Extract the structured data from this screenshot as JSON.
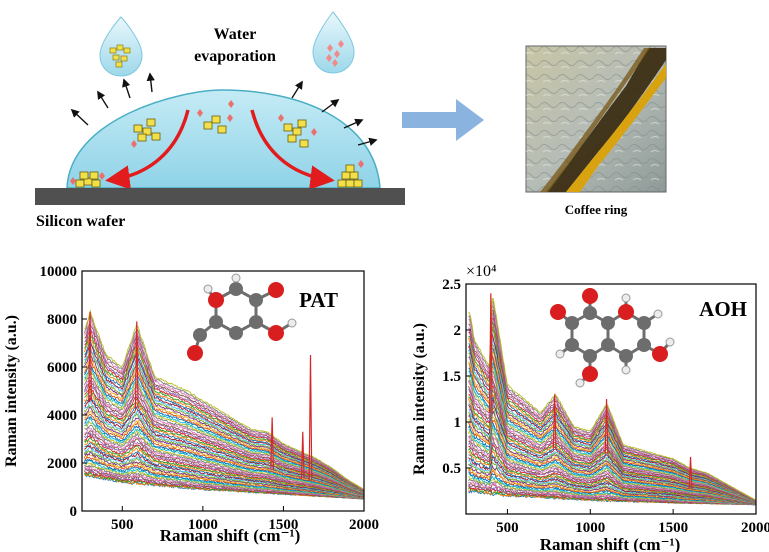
{
  "schematic": {
    "evaporation_label_line1": "Water",
    "evaporation_label_line2": "evaporation",
    "substrate_label": "Silicon wafer",
    "coffee_ring_label": "Coffee ring",
    "colors": {
      "droplet": "#a6dcea",
      "droplet_edge": "#4aaec4",
      "wafer": "#505050",
      "arrow": "#8ab4df",
      "curve_arrow": "#e21c1c",
      "particle": "#f2e04a"
    }
  },
  "chart_data": [
    {
      "type": "line",
      "panel_label": "PAT",
      "xlabel": "Raman shift (cm⁻¹)",
      "ylabel": "Raman intensity (a.u.)",
      "xlim": [
        250,
        2000
      ],
      "ylim": [
        0,
        10000
      ],
      "x_ticks": [
        "500",
        "1000",
        "1500",
        "2000"
      ],
      "y_ticks": [
        "0",
        "2000",
        "4000",
        "6000",
        "8000",
        "10000"
      ],
      "num_spectra": 60,
      "envelope_top": {
        "x": [
          270,
          300,
          400,
          500,
          590,
          700,
          800,
          900,
          1000,
          1100,
          1200,
          1300,
          1400,
          1500,
          1600,
          1700,
          1800,
          1900,
          2000
        ],
        "y": [
          7600,
          8300,
          6500,
          6000,
          7800,
          5600,
          5300,
          5000,
          4600,
          4200,
          3800,
          3400,
          3300,
          2800,
          2500,
          2200,
          1800,
          1300,
          900
        ]
      },
      "envelope_bottom": {
        "x": [
          270,
          500,
          1000,
          1500,
          2000
        ],
        "y": [
          1500,
          1200,
          900,
          700,
          500
        ]
      },
      "peaks": [
        {
          "x": 300,
          "y": 8300
        },
        {
          "x": 590,
          "y": 7900
        },
        {
          "x": 1430,
          "y": 3900
        },
        {
          "x": 1620,
          "y": 3300
        },
        {
          "x": 1668,
          "y": 6500
        }
      ],
      "grid": false
    },
    {
      "type": "line",
      "panel_label": "AOH",
      "xlabel": "Raman shift (cm⁻¹)",
      "ylabel": "Raman intensity (a.u.)",
      "y_multiplier": "×10⁴",
      "xlim": [
        250,
        2000
      ],
      "ylim": [
        0,
        2.5
      ],
      "x_ticks": [
        "500",
        "1000",
        "1500",
        "2000"
      ],
      "y_ticks": [
        "0.5",
        "1",
        "1.5",
        "2",
        "2.5"
      ],
      "num_spectra": 60,
      "envelope_top": {
        "x": [
          270,
          300,
          390,
          410,
          500,
          700,
          790,
          900,
          1000,
          1100,
          1200,
          1300,
          1400,
          1500,
          1600,
          1700,
          1800,
          1900,
          2000
        ],
        "y": [
          2.2,
          1.9,
          1.6,
          2.4,
          1.4,
          1.1,
          1.3,
          0.95,
          0.9,
          1.2,
          0.75,
          0.7,
          0.65,
          0.6,
          0.5,
          0.45,
          0.35,
          0.25,
          0.15
        ]
      },
      "envelope_bottom": {
        "x": [
          270,
          500,
          1000,
          1500,
          2000
        ],
        "y": [
          0.25,
          0.2,
          0.15,
          0.12,
          0.1
        ]
      },
      "peaks": [
        {
          "x": 400,
          "y": 2.4
        },
        {
          "x": 785,
          "y": 1.3
        },
        {
          "x": 1098,
          "y": 1.25
        },
        {
          "x": 1605,
          "y": 0.62
        }
      ],
      "grid": false
    }
  ]
}
